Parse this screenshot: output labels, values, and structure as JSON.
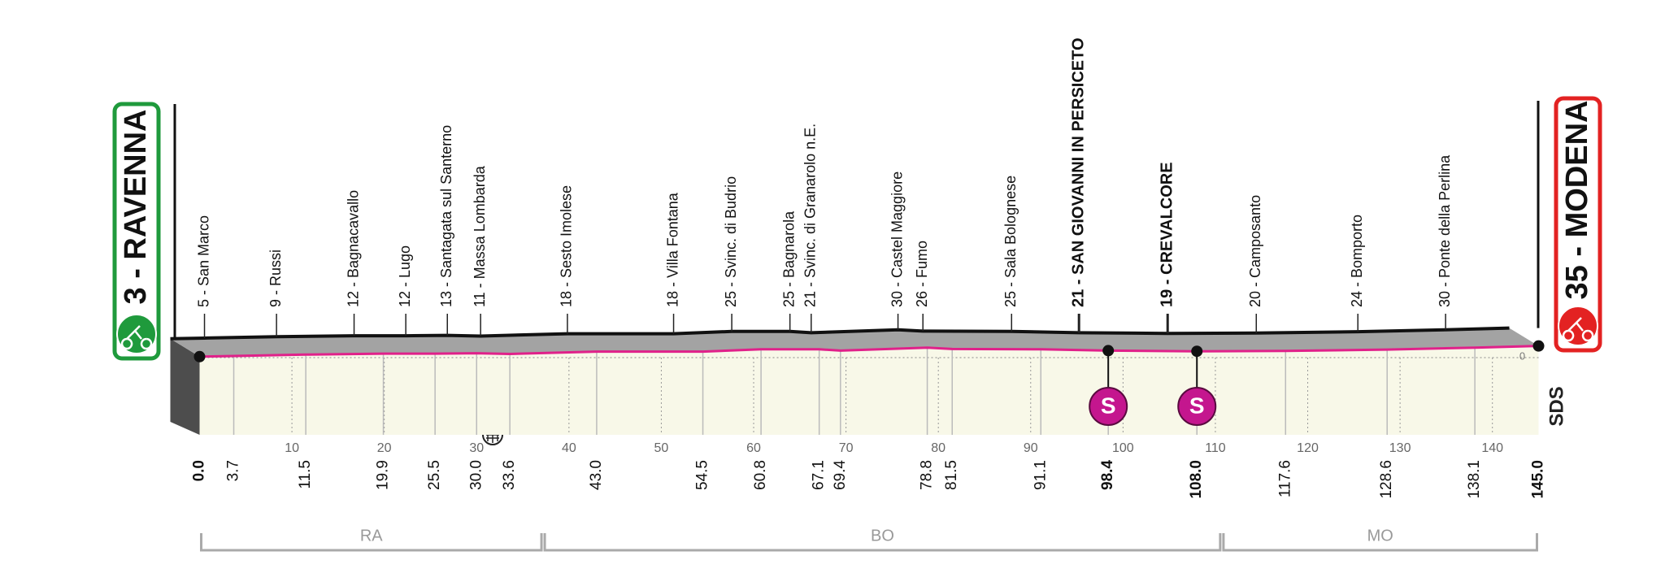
{
  "chart_data": {
    "type": "profile",
    "x": [
      0,
      3.7,
      11.5,
      19.9,
      25.5,
      30.0,
      33.6,
      43.0,
      54.5,
      60.8,
      67.1,
      69.4,
      78.8,
      81.5,
      91.1,
      98.4,
      108.0,
      117.6,
      128.6,
      138.1,
      145.0
    ],
    "x_labels": [
      "0.0",
      "3.7",
      "11.5",
      "19.9",
      "25.5",
      "30.0",
      "33.6",
      "43.0",
      "54.5",
      "60.8",
      "67.1",
      "69.4",
      "78.8",
      "81.5",
      "91.1",
      "98.4",
      "108.0",
      "117.6",
      "128.6",
      "138.1",
      "145.0"
    ],
    "values": [
      3,
      5,
      9,
      12,
      12,
      13,
      11,
      18,
      18,
      25,
      25,
      21,
      30,
      26,
      25,
      21,
      19,
      20,
      24,
      30,
      35
    ],
    "point_labels": [
      "3 - RAVENNA",
      "5 - San Marco",
      "9 - Russi",
      "12 - Bagnacavallo",
      "12 - Lugo",
      "13 - Santagata sul Santerno",
      "11 - Massa Lombarda",
      "18 - Sesto Imolese",
      "18 - Villa Fontana",
      "25 - Svinc. di Budrio",
      "25 - Bagnarola",
      "21 - Svinc. di Granarolo n.E.",
      "30 - Castel Maggiore",
      "26 - Fumo",
      "25 - Sala Bolognese",
      "21 - SAN GIOVANNI IN PERSICETO",
      "19 - CREVALCORE",
      "20 - Camposanto",
      "24 - Bomporto",
      "30 - Ponte della Perlina",
      "35 - MODENA"
    ],
    "sprint": [
      false,
      false,
      false,
      false,
      false,
      false,
      false,
      false,
      false,
      false,
      false,
      false,
      false,
      false,
      false,
      true,
      true,
      false,
      false,
      false,
      false
    ],
    "sprint_label": "S",
    "xlim": [
      0,
      145
    ],
    "xticks": [
      10,
      20,
      30,
      40,
      50,
      60,
      70,
      80,
      90,
      100,
      110,
      120,
      130,
      140
    ],
    "ylim": [
      0,
      100
    ],
    "yticks": [
      0
    ],
    "regions": [
      {
        "label": "RA",
        "from": 0,
        "to": 37.2
      },
      {
        "label": "BO",
        "from": 37.2,
        "to": 110.7
      },
      {
        "label": "MO",
        "from": 110.7,
        "to": 145
      }
    ],
    "logo": "SDS",
    "color": "#e0218a",
    "sprint_color": "#c4168e",
    "start_color": "#1f9a3c",
    "finish_color": "#e32222"
  }
}
